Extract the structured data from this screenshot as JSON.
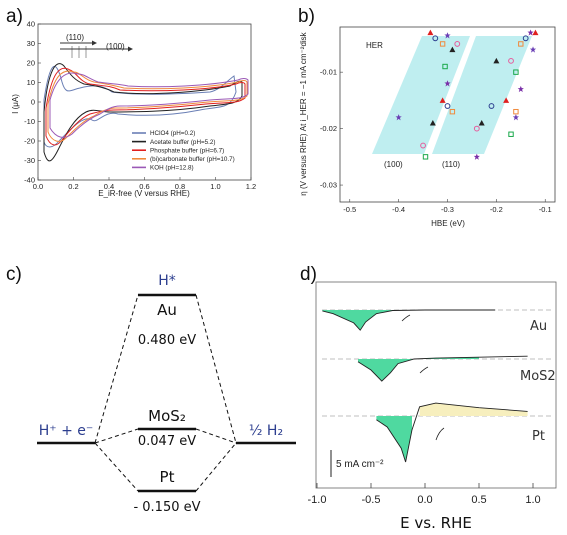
{
  "chart_data": [
    {
      "type": "line",
      "panel_label": "a)",
      "xlabel": "E_iR-free (V versus RHE)",
      "ylabel": "I (μA)",
      "xlim": [
        0.0,
        1.2
      ],
      "ylim": [
        -40,
        40
      ],
      "x_ticks": [
        "0.0",
        "0.2",
        "0.4",
        "0.6",
        "0.8",
        "1.0",
        "1.2"
      ],
      "y_ticks": [
        "-40",
        "-30",
        "-20",
        "-10",
        "0",
        "10",
        "20",
        "30",
        "40"
      ],
      "annotations": [
        "(110)",
        "(100)"
      ],
      "legend_position": "bottom-right",
      "series": [
        {
          "name": "HClO4 (pH=0.2)",
          "color": "#6a7fb5"
        },
        {
          "name": "Acetate buffer (pH=5.2)",
          "color": "#222222"
        },
        {
          "name": "Phosphate buffer (pH=6.7)",
          "color": "#e02020"
        },
        {
          "name": "(bi)carbonate buffer (pH=10.7)",
          "color": "#f08a3c"
        },
        {
          "name": "KOH (pH=12.8)",
          "color": "#9b59b6"
        }
      ]
    },
    {
      "type": "scatter",
      "panel_label": "b)",
      "xlabel": "HBE (eV)",
      "ylabel": "η (V versus RHE) At i_HER = −1 mA cm⁻²disk",
      "xlim": [
        -0.52,
        -0.08
      ],
      "ylim": [
        -0.033,
        -0.002
      ],
      "x_ticks": [
        "-0.5",
        "-0.4",
        "-0.3",
        "-0.2",
        "-0.1"
      ],
      "y_ticks": [
        "-0.01",
        "-0.02",
        "-0.03"
      ],
      "annotations": [
        "HER",
        "(100)",
        "(110)"
      ],
      "points": [
        {
          "x": -0.335,
          "y": -0.003
        },
        {
          "x": -0.325,
          "y": -0.004
        },
        {
          "x": -0.31,
          "y": -0.005
        },
        {
          "x": -0.3,
          "y": -0.0035
        },
        {
          "x": -0.29,
          "y": -0.006
        },
        {
          "x": -0.28,
          "y": -0.005
        },
        {
          "x": -0.305,
          "y": -0.009
        },
        {
          "x": -0.3,
          "y": -0.012
        },
        {
          "x": -0.31,
          "y": -0.015
        },
        {
          "x": -0.3,
          "y": -0.016
        },
        {
          "x": -0.29,
          "y": -0.017
        },
        {
          "x": -0.4,
          "y": -0.018
        },
        {
          "x": -0.33,
          "y": -0.019
        },
        {
          "x": -0.35,
          "y": -0.023
        },
        {
          "x": -0.345,
          "y": -0.025
        },
        {
          "x": -0.13,
          "y": -0.003
        },
        {
          "x": -0.12,
          "y": -0.003
        },
        {
          "x": -0.14,
          "y": -0.004
        },
        {
          "x": -0.15,
          "y": -0.005
        },
        {
          "x": -0.125,
          "y": -0.006
        },
        {
          "x": -0.2,
          "y": -0.008
        },
        {
          "x": -0.17,
          "y": -0.008
        },
        {
          "x": -0.16,
          "y": -0.01
        },
        {
          "x": -0.15,
          "y": -0.013
        },
        {
          "x": -0.18,
          "y": -0.015
        },
        {
          "x": -0.21,
          "y": -0.016
        },
        {
          "x": -0.16,
          "y": -0.017
        },
        {
          "x": -0.16,
          "y": -0.018
        },
        {
          "x": -0.23,
          "y": -0.019
        },
        {
          "x": -0.24,
          "y": -0.02
        },
        {
          "x": -0.17,
          "y": -0.021
        },
        {
          "x": -0.24,
          "y": -0.025
        }
      ]
    },
    {
      "type": "line",
      "panel_label": "d)",
      "xlabel": "E vs. RHE",
      "xlim": [
        -1.0,
        1.0
      ],
      "x_ticks": [
        "-1.0",
        "-0.5",
        "0.0",
        "0.5",
        "1.0"
      ],
      "scale_bar": "5 mA cm⁻²",
      "series": [
        {
          "name": "Au",
          "x": [
            0.65,
            0.3,
            0.0,
            -0.3,
            -0.45,
            -0.55,
            -0.6,
            -0.66,
            -0.85,
            -0.95
          ],
          "y": [
            0,
            0,
            0,
            -0.05,
            -0.4,
            -1.3,
            -2.2,
            -1.4,
            -0.4,
            -0.1
          ]
        },
        {
          "name": "MoS2",
          "x": [
            0.95,
            0.5,
            0.1,
            -0.1,
            -0.25,
            -0.32,
            -0.4,
            -0.5,
            -0.62
          ],
          "y": [
            0.3,
            0.2,
            0.1,
            0.0,
            -0.5,
            -1.5,
            -2.4,
            -1.2,
            -0.3
          ]
        },
        {
          "name": "Pt",
          "x": [
            0.95,
            0.5,
            0.1,
            -0.05,
            -0.12,
            -0.18,
            -0.22,
            -0.35,
            -0.45
          ],
          "y": [
            0.5,
            0.9,
            1.4,
            1.0,
            -1.5,
            -5.0,
            -3.5,
            -1.2,
            -0.4
          ]
        }
      ]
    }
  ],
  "panel_c": {
    "panel_label": "c)",
    "state_label": "H*",
    "left_label": "H⁺ + e⁻",
    "right_label": "½ H₂",
    "levels": [
      {
        "metal": "Au",
        "value": "0.480 eV"
      },
      {
        "metal": "MoS₂",
        "value": "0.047 eV"
      },
      {
        "metal": "Pt",
        "value": "- 0.150 eV"
      }
    ]
  },
  "colors": {
    "hclo4": "#6a7fb5",
    "acetate": "#222222",
    "phosphate": "#e02020",
    "carbonate": "#f08a3c",
    "koh": "#9b59b6",
    "band": "#bfeef0",
    "fill_green": "#4fd9a0",
    "fill_cream": "#f7efbe",
    "navy": "#2c3e8f"
  }
}
